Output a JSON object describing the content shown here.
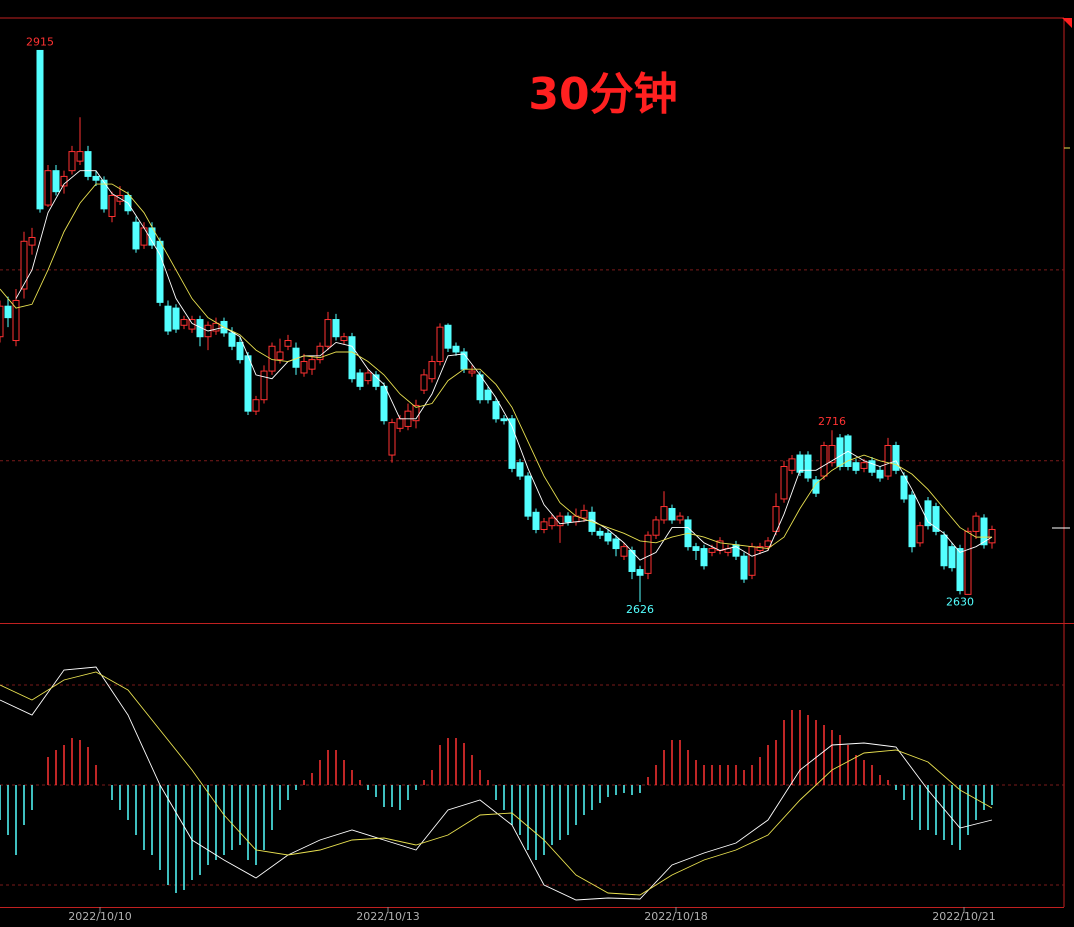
{
  "chart_data": [
    {
      "type": "candlestick",
      "title": "30分钟",
      "up_color": "#ff3232",
      "down_color": "#54ffff",
      "ylim": [
        2615,
        2932
      ],
      "grid_levels": [
        2700,
        2800
      ],
      "annotated_highs": [
        5,
        104
      ],
      "annotated_lows": [
        80,
        120
      ],
      "ohlc": [
        [
          2765,
          2784,
          2762,
          2781
        ],
        [
          2781,
          2786,
          2770,
          2775
        ],
        [
          2763,
          2790,
          2760,
          2784
        ],
        [
          2790,
          2820,
          2785,
          2815
        ],
        [
          2813,
          2822,
          2808,
          2817
        ],
        [
          2915,
          2915,
          2830,
          2832
        ],
        [
          2834,
          2855,
          2833,
          2852
        ],
        [
          2852,
          2855,
          2839,
          2841
        ],
        [
          2844,
          2852,
          2840,
          2849
        ],
        [
          2852,
          2865,
          2850,
          2862
        ],
        [
          2857,
          2880,
          2855,
          2862
        ],
        [
          2862,
          2865,
          2847,
          2849
        ],
        [
          2849,
          2852,
          2844,
          2847
        ],
        [
          2847,
          2849,
          2830,
          2832
        ],
        [
          2828,
          2841,
          2825,
          2839
        ],
        [
          2836,
          2844,
          2834,
          2839
        ],
        [
          2839,
          2841,
          2829,
          2831
        ],
        [
          2825,
          2828,
          2809,
          2811
        ],
        [
          2813,
          2825,
          2811,
          2822
        ],
        [
          2822,
          2825,
          2811,
          2813
        ],
        [
          2815,
          2817,
          2781,
          2783
        ],
        [
          2781,
          2784,
          2766,
          2768
        ],
        [
          2780,
          2782,
          2767,
          2769
        ],
        [
          2771,
          2776,
          2769,
          2774
        ],
        [
          2769,
          2776,
          2767,
          2774
        ],
        [
          2774,
          2776,
          2760,
          2765
        ],
        [
          2765,
          2773,
          2758,
          2771
        ],
        [
          2768,
          2775,
          2766,
          2772
        ],
        [
          2773,
          2775,
          2765,
          2767
        ],
        [
          2767,
          2770,
          2758,
          2760
        ],
        [
          2762,
          2765,
          2751,
          2753
        ],
        [
          2755,
          2757,
          2724,
          2726
        ],
        [
          2726,
          2734,
          2724,
          2732
        ],
        [
          2732,
          2750,
          2730,
          2747
        ],
        [
          2747,
          2762,
          2745,
          2760
        ],
        [
          2753,
          2764,
          2751,
          2757
        ],
        [
          2760,
          2766,
          2758,
          2763
        ],
        [
          2759,
          2762,
          2745,
          2749
        ],
        [
          2746,
          2756,
          2744,
          2752
        ],
        [
          2748,
          2755,
          2745,
          2753
        ],
        [
          2753,
          2762,
          2751,
          2760
        ],
        [
          2760,
          2778,
          2758,
          2774
        ],
        [
          2774,
          2777,
          2763,
          2765
        ],
        [
          2763,
          2767,
          2761,
          2765
        ],
        [
          2765,
          2767,
          2741,
          2743
        ],
        [
          2746,
          2748,
          2737,
          2739
        ],
        [
          2742,
          2748,
          2740,
          2746
        ],
        [
          2745,
          2747,
          2737,
          2739
        ],
        [
          2739,
          2741,
          2719,
          2721
        ],
        [
          2703,
          2722,
          2699,
          2720
        ],
        [
          2717,
          2724,
          2715,
          2722
        ],
        [
          2718,
          2730,
          2716,
          2726
        ],
        [
          2721,
          2732,
          2717,
          2729
        ],
        [
          2737,
          2748,
          2735,
          2745
        ],
        [
          2743,
          2755,
          2741,
          2752
        ],
        [
          2752,
          2772,
          2750,
          2770
        ],
        [
          2771,
          2772,
          2757,
          2759
        ],
        [
          2760,
          2762,
          2755,
          2757
        ],
        [
          2757,
          2759,
          2746,
          2748
        ],
        [
          2746,
          2750,
          2744,
          2747
        ],
        [
          2745,
          2747,
          2730,
          2732
        ],
        [
          2737,
          2739,
          2730,
          2732
        ],
        [
          2731,
          2733,
          2720,
          2722
        ],
        [
          2722,
          2724,
          2719,
          2721
        ],
        [
          2722,
          2724,
          2694,
          2696
        ],
        [
          2699,
          2701,
          2690,
          2692
        ],
        [
          2692,
          2694,
          2669,
          2671
        ],
        [
          2673,
          2675,
          2662,
          2664
        ],
        [
          2664,
          2670,
          2662,
          2668
        ],
        [
          2666,
          2672,
          2664,
          2670
        ],
        [
          2666,
          2673,
          2657,
          2671
        ],
        [
          2671,
          2673,
          2666,
          2668
        ],
        [
          2668,
          2675,
          2666,
          2671
        ],
        [
          2670,
          2677,
          2668,
          2674
        ],
        [
          2673,
          2676,
          2661,
          2663
        ],
        [
          2663,
          2665,
          2659,
          2661
        ],
        [
          2662,
          2664,
          2656,
          2658
        ],
        [
          2659,
          2661,
          2650,
          2654
        ],
        [
          2650,
          2657,
          2648,
          2655
        ],
        [
          2653,
          2655,
          2638,
          2642
        ],
        [
          2643,
          2645,
          2626,
          2640
        ],
        [
          2641,
          2663,
          2638,
          2661
        ],
        [
          2661,
          2671,
          2659,
          2669
        ],
        [
          2669,
          2684,
          2667,
          2676
        ],
        [
          2675,
          2677,
          2667,
          2669
        ],
        [
          2669,
          2673,
          2667,
          2671
        ],
        [
          2669,
          2671,
          2653,
          2655
        ],
        [
          2655,
          2657,
          2648,
          2653
        ],
        [
          2654,
          2656,
          2643,
          2645
        ],
        [
          2652,
          2656,
          2650,
          2654
        ],
        [
          2653,
          2660,
          2651,
          2658
        ],
        [
          2652,
          2656,
          2650,
          2654
        ],
        [
          2656,
          2658,
          2648,
          2650
        ],
        [
          2650,
          2652,
          2636,
          2638
        ],
        [
          2640,
          2657,
          2638,
          2655
        ],
        [
          2653,
          2657,
          2651,
          2655
        ],
        [
          2655,
          2660,
          2653,
          2658
        ],
        [
          2663,
          2683,
          2661,
          2676
        ],
        [
          2680,
          2700,
          2678,
          2697
        ],
        [
          2695,
          2703,
          2693,
          2701
        ],
        [
          2703,
          2705,
          2692,
          2694
        ],
        [
          2703,
          2705,
          2689,
          2691
        ],
        [
          2690,
          2692,
          2681,
          2683
        ],
        [
          2692,
          2710,
          2690,
          2708
        ],
        [
          2699,
          2716,
          2697,
          2708
        ],
        [
          2712,
          2714,
          2695,
          2697
        ],
        [
          2713,
          2714,
          2695,
          2697
        ],
        [
          2699,
          2701,
          2693,
          2695
        ],
        [
          2696,
          2701,
          2694,
          2699
        ],
        [
          2700,
          2702,
          2692,
          2694
        ],
        [
          2695,
          2697,
          2689,
          2691
        ],
        [
          2692,
          2712,
          2690,
          2708
        ],
        [
          2708,
          2710,
          2693,
          2695
        ],
        [
          2692,
          2694,
          2678,
          2680
        ],
        [
          2682,
          2684,
          2652,
          2655
        ],
        [
          2657,
          2668,
          2655,
          2666
        ],
        [
          2679,
          2681,
          2664,
          2666
        ],
        [
          2676,
          2678,
          2661,
          2663
        ],
        [
          2661,
          2663,
          2643,
          2645
        ],
        [
          2655,
          2657,
          2642,
          2644
        ],
        [
          2654,
          2656,
          2630,
          2632
        ],
        [
          2630,
          2665,
          2630,
          2663
        ],
        [
          2663,
          2673,
          2659,
          2671
        ],
        [
          2670,
          2672,
          2654,
          2656
        ],
        [
          2657,
          2666,
          2654,
          2664
        ]
      ],
      "ma": [
        {
          "color": "#ffffff",
          "x": [
            2,
            4,
            6,
            8,
            10,
            12,
            14,
            16,
            18,
            20,
            22,
            24,
            26,
            28,
            30,
            32,
            34,
            36,
            38,
            40,
            42,
            44,
            46,
            48,
            50,
            52,
            54,
            56,
            58,
            60,
            62,
            64,
            66,
            68,
            70,
            72,
            74,
            76,
            78,
            80,
            82,
            84,
            86,
            88,
            90,
            92,
            94,
            96,
            98,
            100,
            102,
            104,
            106,
            108,
            110,
            112,
            114,
            116,
            118,
            120,
            122,
            124
          ],
          "values": [
            2785,
            2800,
            2830,
            2845,
            2852,
            2852,
            2840,
            2835,
            2822,
            2808,
            2785,
            2772,
            2768,
            2770,
            2765,
            2745,
            2743,
            2752,
            2755,
            2755,
            2762,
            2760,
            2748,
            2740,
            2722,
            2722,
            2735,
            2755,
            2756,
            2745,
            2733,
            2718,
            2696,
            2677,
            2667,
            2668,
            2669,
            2664,
            2657,
            2648,
            2652,
            2665,
            2665,
            2657,
            2653,
            2655,
            2650,
            2653,
            2672,
            2695,
            2695,
            2700,
            2705,
            2700,
            2697,
            2700,
            2685,
            2668,
            2662,
            2652,
            2655,
            2660
          ]
        },
        {
          "color": "#e8e050",
          "x": [
            0,
            2,
            4,
            6,
            8,
            10,
            12,
            14,
            16,
            18,
            20,
            22,
            24,
            26,
            28,
            30,
            32,
            34,
            36,
            38,
            40,
            42,
            44,
            46,
            48,
            50,
            52,
            54,
            56,
            58,
            60,
            62,
            64,
            66,
            68,
            70,
            72,
            74,
            76,
            78,
            80,
            82,
            84,
            86,
            88,
            90,
            92,
            94,
            96,
            98,
            100,
            102,
            104,
            106,
            108,
            110,
            112,
            114,
            116,
            118,
            120,
            122,
            124
          ],
          "values": [
            2790,
            2780,
            2782,
            2800,
            2820,
            2835,
            2845,
            2845,
            2840,
            2830,
            2815,
            2800,
            2785,
            2775,
            2770,
            2766,
            2758,
            2753,
            2752,
            2755,
            2754,
            2757,
            2757,
            2752,
            2745,
            2735,
            2728,
            2730,
            2742,
            2748,
            2748,
            2740,
            2728,
            2710,
            2692,
            2678,
            2671,
            2668,
            2665,
            2662,
            2658,
            2657,
            2660,
            2662,
            2660,
            2657,
            2656,
            2655,
            2654,
            2660,
            2675,
            2688,
            2695,
            2700,
            2703,
            2700,
            2698,
            2693,
            2685,
            2675,
            2665,
            2660,
            2660
          ]
        }
      ]
    },
    {
      "type": "macd",
      "ylim": [
        -12.2,
        16.2
      ],
      "grid_levels": [
        -10,
        0,
        10
      ],
      "up_color": "#ff3232",
      "down_color": "#54ffff",
      "histogram": [
        -3.5,
        -5,
        -7,
        -4,
        -2.5,
        0,
        2.8,
        3.5,
        4,
        4.7,
        4.5,
        3.8,
        2,
        0,
        -1.5,
        -2.5,
        -3.5,
        -5,
        -6.5,
        -7,
        -8.5,
        -10,
        -10.8,
        -10.5,
        -9.5,
        -9,
        -8,
        -7.5,
        -7,
        -6.5,
        -6,
        -7.5,
        -8,
        -6.5,
        -4.5,
        -2.5,
        -1.5,
        -0.5,
        0.5,
        1.2,
        2.5,
        3.5,
        3.5,
        2.5,
        1.5,
        0.5,
        -0.5,
        -1.2,
        -2.2,
        -2.2,
        -2.5,
        -1.5,
        -0.5,
        0.5,
        1.5,
        4,
        4.7,
        4.7,
        4.2,
        3,
        1.5,
        0.5,
        -1.5,
        -2.5,
        -4,
        -5,
        -6.5,
        -7.5,
        -7,
        -6,
        -5.5,
        -5,
        -4,
        -3,
        -2.5,
        -1.8,
        -1.2,
        -1,
        -0.8,
        -1,
        -0.8,
        0.8,
        2,
        3.5,
        4.5,
        4.5,
        3.5,
        2.5,
        2,
        2,
        2,
        2,
        2,
        1.5,
        2,
        2.8,
        4,
        4.5,
        6.5,
        7.5,
        7.5,
        7,
        6.5,
        6,
        5.5,
        5,
        4,
        3,
        2.5,
        2,
        1,
        0.5,
        -0.5,
        -1.5,
        -3.5,
        -4.5,
        -4.5,
        -5,
        -5.5,
        -6,
        -6.5,
        -5,
        -3.5,
        -2.5,
        -2
      ],
      "lines": [
        {
          "color": "#ffffff",
          "x": [
            0,
            4,
            8,
            12,
            16,
            20,
            24,
            28,
            32,
            36,
            40,
            44,
            48,
            52,
            56,
            60,
            64,
            68,
            72,
            76,
            80,
            84,
            88,
            92,
            96,
            100,
            104,
            108,
            112,
            116,
            120,
            124
          ],
          "values": [
            8.5,
            7,
            11.5,
            11.8,
            7,
            0,
            -5.5,
            -7.5,
            -9.3,
            -7,
            -5.5,
            -4.5,
            -5.5,
            -6.5,
            -2.5,
            -1.5,
            -4,
            -10,
            -11.5,
            -11.3,
            -11.4,
            -8,
            -6.8,
            -5.8,
            -3.5,
            1.5,
            4,
            4.2,
            3.8,
            -0.5,
            -4.3,
            -3.5
          ]
        },
        {
          "color": "#e8e050",
          "x": [
            0,
            4,
            8,
            12,
            16,
            20,
            24,
            28,
            32,
            36,
            40,
            44,
            48,
            52,
            56,
            60,
            64,
            68,
            72,
            76,
            80,
            84,
            88,
            92,
            96,
            100,
            104,
            108,
            112,
            116,
            120,
            124
          ],
          "values": [
            10,
            8.5,
            10.5,
            11.3,
            9.5,
            5.5,
            1.5,
            -3,
            -6.5,
            -7,
            -6.5,
            -5.5,
            -5.3,
            -6,
            -5,
            -3,
            -2.8,
            -5.5,
            -9,
            -10.8,
            -11,
            -9,
            -7.5,
            -6.5,
            -5,
            -1.5,
            1.5,
            3.2,
            3.5,
            2.3,
            -0.5,
            -2.3
          ]
        }
      ],
      "x_labels": [
        {
          "value": 12.5,
          "label": "2022/10/10"
        },
        {
          "value": 48.5,
          "label": "2022/10/13"
        },
        {
          "value": 84.5,
          "label": "2022/10/18"
        },
        {
          "value": 120.5,
          "label": "2022/10/21"
        }
      ]
    }
  ]
}
